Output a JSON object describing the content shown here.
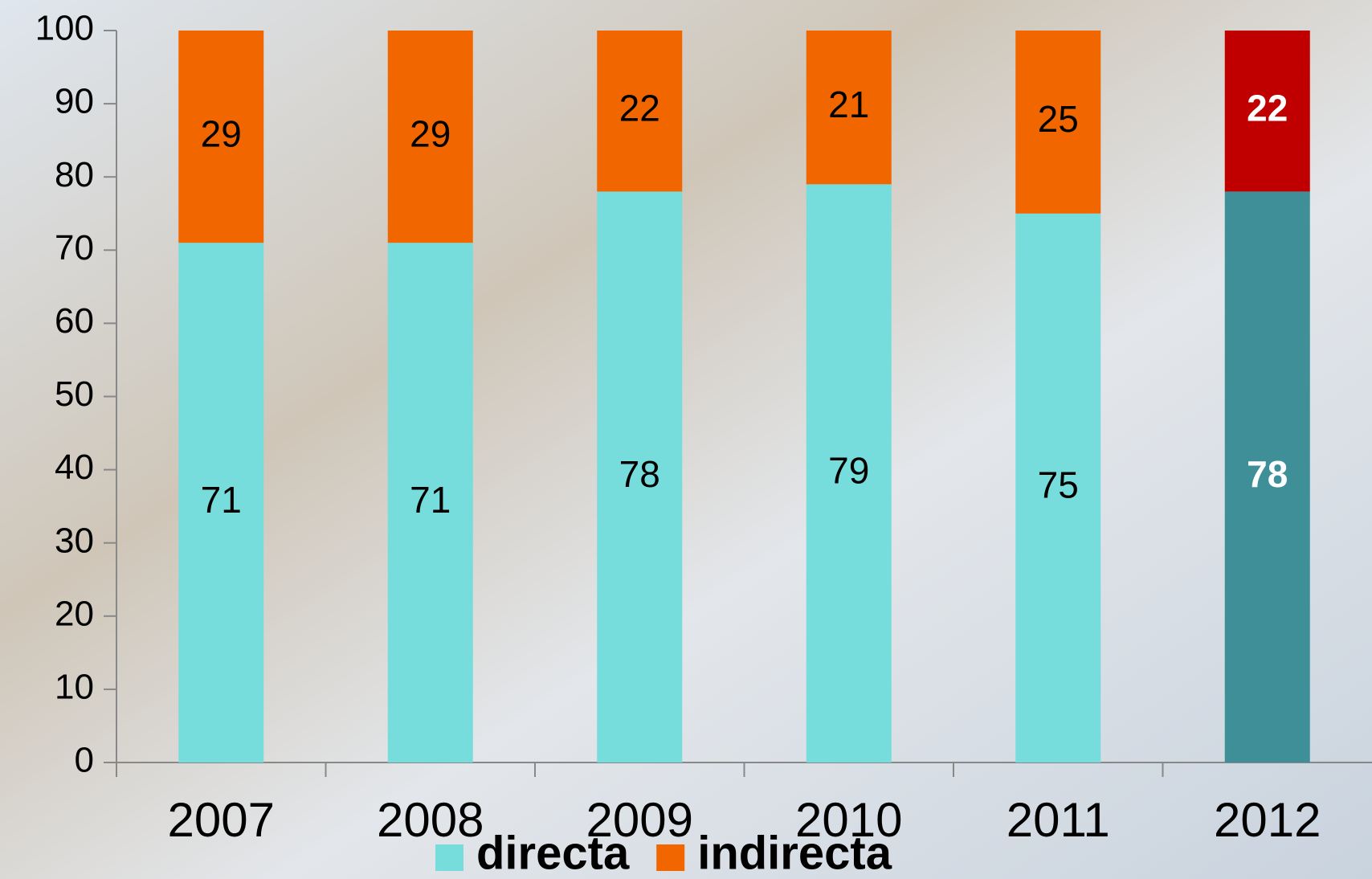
{
  "chart_data": {
    "type": "stacked_bar",
    "categories": [
      "2007",
      "2008",
      "2009",
      "2010",
      "2011",
      "2012"
    ],
    "series": [
      {
        "name": "directa",
        "color": "#77dcdc",
        "colors": [
          "#77dcdc",
          "#77dcdc",
          "#77dcdc",
          "#77dcdc",
          "#77dcdc",
          "#3f8f99"
        ],
        "values": [
          71,
          71,
          78,
          79,
          75,
          78
        ]
      },
      {
        "name": "indirecta",
        "color": "#f26600",
        "colors": [
          "#f26600",
          "#f26600",
          "#f26600",
          "#f26600",
          "#f26600",
          "#c00000"
        ],
        "values": [
          29,
          29,
          22,
          21,
          25,
          22
        ]
      }
    ],
    "ylim": [
      0,
      100
    ],
    "yticks": [
      0,
      10,
      20,
      30,
      40,
      50,
      60,
      70,
      80,
      90,
      100
    ],
    "legend": "bottom"
  }
}
